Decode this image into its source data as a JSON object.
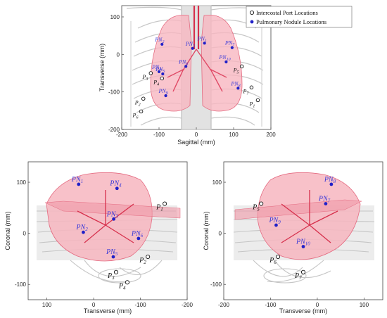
{
  "chart_data": [
    {
      "type": "scatter",
      "panel": "top",
      "xlabel": "Sagittal (mm)",
      "ylabel": "Transverse (mm)",
      "xlim": [
        -200,
        200
      ],
      "ylim": [
        -200,
        130
      ],
      "x_ticks": [
        -200,
        -100,
        0,
        100,
        200
      ],
      "y_ticks": [
        100,
        0,
        -100,
        -200
      ],
      "legend": {
        "placement": "top-right",
        "entries": [
          {
            "label": "Intercostal Port Locations",
            "marker": "open-circle"
          },
          {
            "label": "Pulmonary Nodule Locations",
            "marker": "filled-circle"
          }
        ]
      },
      "series": [
        {
          "name": "Intercostal Port Locations",
          "color": "#111111",
          "points": [
            {
              "label": "P",
              "sub": "1",
              "x": 165,
              "y": -122
            },
            {
              "label": "P",
              "sub": "2",
              "x": -142,
              "y": -118
            },
            {
              "label": "P",
              "sub": "3",
              "x": -122,
              "y": -50
            },
            {
              "label": "P",
              "sub": "4",
              "x": -92,
              "y": -64
            },
            {
              "label": "P",
              "sub": "5",
              "x": 122,
              "y": -32
            },
            {
              "label": "P",
              "sub": "6",
              "x": -148,
              "y": -152
            },
            {
              "label": "P",
              "sub": "7",
              "x": 148,
              "y": -88
            }
          ]
        },
        {
          "name": "Pulmonary Nodule Locations",
          "color": "#2020c8",
          "points": [
            {
              "label": "PN",
              "sub": "1",
              "x": 22,
              "y": 30
            },
            {
              "label": "PN",
              "sub": "2",
              "x": -92,
              "y": 27
            },
            {
              "label": "PN",
              "sub": "3",
              "x": -10,
              "y": 16
            },
            {
              "label": "PN",
              "sub": "4",
              "x": -100,
              "y": -46
            },
            {
              "label": "PN",
              "sub": "5",
              "x": -90,
              "y": -52
            },
            {
              "label": "PN",
              "sub": "6",
              "x": -28,
              "y": -32
            },
            {
              "label": "PN",
              "sub": "7",
              "x": 96,
              "y": 18
            },
            {
              "label": "PN",
              "sub": "8",
              "x": 112,
              "y": -90
            },
            {
              "label": "PN",
              "sub": "9",
              "x": -82,
              "y": -110
            },
            {
              "label": "PN",
              "sub": "10",
              "x": 80,
              "y": -20
            }
          ]
        }
      ]
    },
    {
      "type": "scatter",
      "panel": "bottom-left",
      "xlabel": "Transverse (mm)",
      "ylabel": "Coronal (mm)",
      "xlim": [
        140,
        -200
      ],
      "ylim": [
        -130,
        140
      ],
      "x_ticks": [
        100,
        0,
        -100,
        -200
      ],
      "y_ticks": [
        100,
        0,
        -100
      ],
      "series": [
        {
          "name": "Intercostal Port Locations",
          "color": "#111111",
          "points": [
            {
              "label": "P",
              "sub": "1",
              "x": -152,
              "y": 58
            },
            {
              "label": "P",
              "sub": "2",
              "x": -116,
              "y": -46
            },
            {
              "label": "P",
              "sub": "3",
              "x": -48,
              "y": -76
            },
            {
              "label": "P",
              "sub": "4",
              "x": -72,
              "y": -96
            }
          ]
        },
        {
          "name": "Pulmonary Nodule Locations",
          "color": "#2020c8",
          "points": [
            {
              "label": "PN",
              "sub": "1",
              "x": 32,
              "y": 96
            },
            {
              "label": "PN",
              "sub": "2",
              "x": 22,
              "y": 2
            },
            {
              "label": "PN",
              "sub": "3",
              "x": -43,
              "y": 28
            },
            {
              "label": "PN",
              "sub": "4",
              "x": -50,
              "y": 88
            },
            {
              "label": "PN",
              "sub": "5",
              "x": -42,
              "y": -46
            },
            {
              "label": "PN",
              "sub": "6",
              "x": -96,
              "y": -10
            }
          ]
        }
      ]
    },
    {
      "type": "scatter",
      "panel": "bottom-right",
      "xlabel": "Transverse (mm)",
      "ylabel": "Coronal (mm)",
      "xlim": [
        -200,
        140
      ],
      "ylim": [
        -130,
        140
      ],
      "x_ticks": [
        -200,
        -100,
        0,
        100
      ],
      "y_ticks": [
        100,
        0,
        -100
      ],
      "series": [
        {
          "name": "Intercostal Port Locations",
          "color": "#111111",
          "points": [
            {
              "label": "P",
              "sub": "5",
              "x": -120,
              "y": 58
            },
            {
              "label": "P",
              "sub": "6",
              "x": -84,
              "y": -46
            },
            {
              "label": "P",
              "sub": "7",
              "x": -30,
              "y": -76
            }
          ]
        },
        {
          "name": "Pulmonary Nodule Locations",
          "color": "#2020c8",
          "points": [
            {
              "label": "PN",
              "sub": "7",
              "x": 18,
              "y": 58
            },
            {
              "label": "PN",
              "sub": "8",
              "x": 30,
              "y": 96
            },
            {
              "label": "PN",
              "sub": "9",
              "x": -88,
              "y": 16
            },
            {
              "label": "PN",
              "sub": "10",
              "x": -30,
              "y": -26
            }
          ]
        }
      ]
    }
  ],
  "colors": {
    "lung_fill": "#f7b6c0",
    "lung_edge": "#e46a80",
    "airway": "#d6304c",
    "skeleton": "#c8c8c8",
    "nodule": "#2020c8",
    "port": "#111111"
  }
}
